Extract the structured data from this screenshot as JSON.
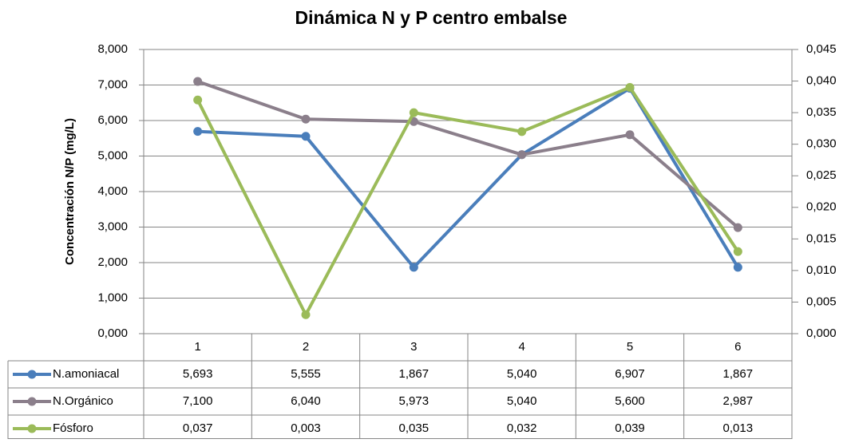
{
  "chart_data": {
    "type": "line",
    "title": "Dinámica N y P centro embalse",
    "y_label": "Concentración N/P (mg/L)",
    "categories": [
      "1",
      "2",
      "3",
      "4",
      "5",
      "6"
    ],
    "series": [
      {
        "name": "N.amoniacal",
        "color": "#4a7ebb",
        "values": [
          5.693,
          5.555,
          1.867,
          5.04,
          6.907,
          1.867
        ],
        "value_labels": [
          "5,693",
          "5,555",
          "1,867",
          "5,040",
          "6,907",
          "1,867"
        ]
      },
      {
        "name": "N.Orgánico",
        "color": "#8b7f8b",
        "values": [
          7.1,
          6.04,
          5.973,
          5.04,
          5.6,
          2.987
        ],
        "value_labels": [
          "7,100",
          "6,040",
          "5,973",
          "5,040",
          "5,600",
          "2,987"
        ]
      },
      {
        "name": "Fósforo",
        "color": "#9bbb59",
        "axis": "y2",
        "values": [
          0.037,
          0.003,
          0.035,
          0.032,
          0.039,
          0.013
        ],
        "value_labels": [
          "0,037",
          "0,003",
          "0,035",
          "0,032",
          "0,039",
          "0,013"
        ]
      }
    ],
    "ylim": [
      0,
      8
    ],
    "yticks": [
      {
        "value": 0,
        "label": "0,000"
      },
      {
        "value": 1,
        "label": "1,000"
      },
      {
        "value": 2,
        "label": "2,000"
      },
      {
        "value": 3,
        "label": "3,000"
      },
      {
        "value": 4,
        "label": "4,000"
      },
      {
        "value": 5,
        "label": "5,000"
      },
      {
        "value": 6,
        "label": "6,000"
      },
      {
        "value": 7,
        "label": "7,000"
      },
      {
        "value": 8,
        "label": "8,000"
      }
    ],
    "y2lim": [
      0,
      0.045
    ],
    "y2ticks": [
      {
        "value": 0,
        "label": "0,000"
      },
      {
        "value": 0.005,
        "label": "0,005"
      },
      {
        "value": 0.01,
        "label": "0,010"
      },
      {
        "value": 0.015,
        "label": "0,015"
      },
      {
        "value": 0.02,
        "label": "0,020"
      },
      {
        "value": 0.025,
        "label": "0,025"
      },
      {
        "value": 0.03,
        "label": "0,030"
      },
      {
        "value": 0.035,
        "label": "0,035"
      },
      {
        "value": 0.04,
        "label": "0,040"
      },
      {
        "value": 0.045,
        "label": "0,045"
      }
    ],
    "grid": true
  }
}
